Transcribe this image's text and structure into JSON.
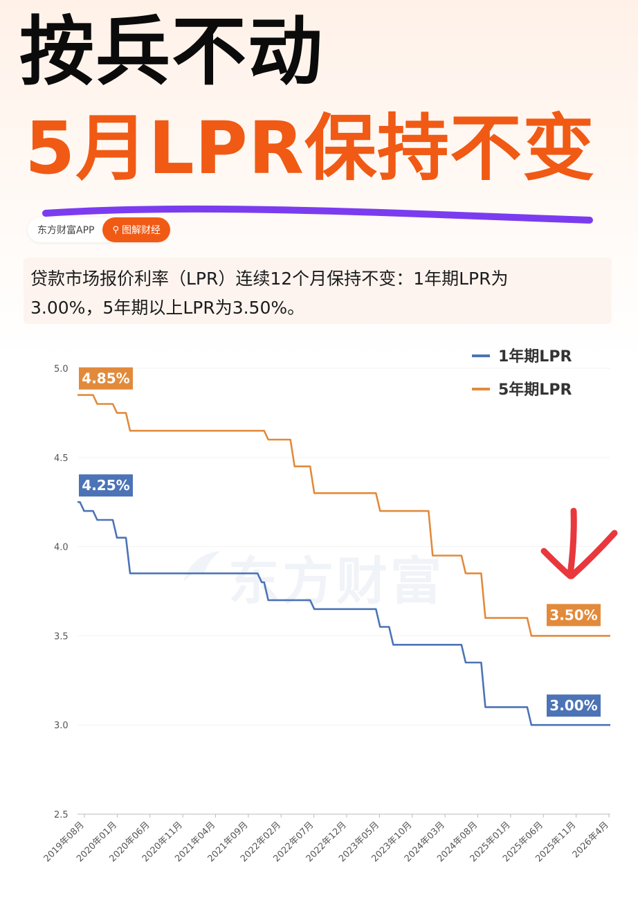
{
  "header": {
    "title_line1": "按兵不动",
    "title_line2": "5月LPR保持不变",
    "source_app": "东方财富APP",
    "source_tag": "图解财经"
  },
  "summary": {
    "line1": "贷款市场报价利率（LPR）连续12个月保持不变：1年期LPR为",
    "line2": "3.00%，5年期以上LPR为3.50%。"
  },
  "watermark": "东方财富",
  "colors": {
    "accent": "#f05a14",
    "series_1y": "#4c73b6",
    "series_5y": "#e28a3b",
    "arrow": "#e8383d",
    "underline": "#7b3cf0"
  },
  "chart_data": {
    "type": "line",
    "title": "",
    "xlabel": "",
    "ylabel": "",
    "ylim": [
      2.5,
      5.0
    ],
    "y_ticks": [
      "5.0",
      "4.5",
      "4.0",
      "3.5",
      "3.0",
      "2.5"
    ],
    "x_tick_labels": [
      "2019年08月",
      "2020年01月",
      "2020年06月",
      "2020年11月",
      "2021年04月",
      "2021年09月",
      "2022年02月",
      "2022年07月",
      "2022年12月",
      "2023年05月",
      "2023年10月",
      "2024年03月",
      "2024年08月",
      "2025年01月",
      "2025年06月",
      "2025年11月",
      "2026年4月"
    ],
    "legend_position": "top-right",
    "series": [
      {
        "name": "1年期LPR",
        "points": [
          [
            "2019-08",
            4.25
          ],
          [
            "2019-09",
            4.2
          ],
          [
            "2019-11",
            4.15
          ],
          [
            "2020-02",
            4.05
          ],
          [
            "2020-04",
            3.85
          ],
          [
            "2021-12",
            3.8
          ],
          [
            "2022-01",
            3.7
          ],
          [
            "2022-08",
            3.65
          ],
          [
            "2023-06",
            3.55
          ],
          [
            "2023-08",
            3.45
          ],
          [
            "2024-07",
            3.35
          ],
          [
            "2024-10",
            3.1
          ],
          [
            "2025-05",
            3.0
          ],
          [
            "2026-05",
            3.0
          ]
        ],
        "start_label": "4.25%",
        "end_label": "3.00%"
      },
      {
        "name": "5年期LPR",
        "points": [
          [
            "2019-08",
            4.85
          ],
          [
            "2019-11",
            4.8
          ],
          [
            "2020-02",
            4.75
          ],
          [
            "2020-04",
            4.65
          ],
          [
            "2022-01",
            4.6
          ],
          [
            "2022-05",
            4.45
          ],
          [
            "2022-08",
            4.3
          ],
          [
            "2023-06",
            4.2
          ],
          [
            "2024-02",
            3.95
          ],
          [
            "2024-07",
            3.85
          ],
          [
            "2024-10",
            3.6
          ],
          [
            "2025-05",
            3.5
          ],
          [
            "2026-05",
            3.5
          ]
        ],
        "start_label": "4.85%",
        "end_label": "3.50%"
      }
    ]
  }
}
